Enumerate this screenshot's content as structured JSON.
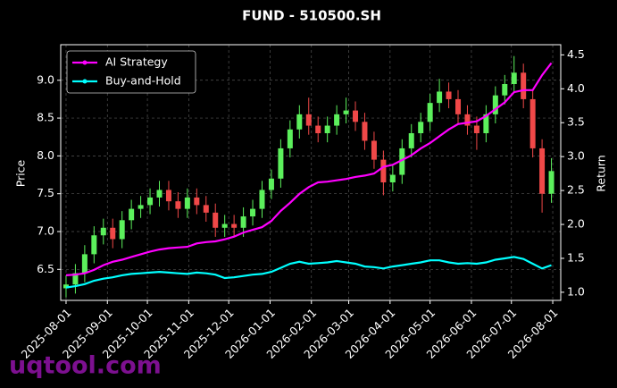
{
  "chart_data": {
    "type": "candlestick",
    "title": "FUND - 510500.SH",
    "y_label": "Price",
    "y2_label": "Return",
    "watermark": "uqtool.com",
    "grid": true,
    "legend": "upper left",
    "up_color": "#5cf05c",
    "down_color": "#f04848",
    "x": [
      "2025-08-01",
      "2025-08-08",
      "2025-08-15",
      "2025-08-22",
      "2025-08-29",
      "2025-09-05",
      "2025-09-12",
      "2025-09-19",
      "2025-09-26",
      "2025-10-03",
      "2025-10-10",
      "2025-10-17",
      "2025-10-24",
      "2025-10-31",
      "2025-11-07",
      "2025-11-14",
      "2025-11-21",
      "2025-11-28",
      "2025-12-05",
      "2025-12-12",
      "2025-12-19",
      "2025-12-26",
      "2026-01-02",
      "2026-01-09",
      "2026-01-16",
      "2026-01-23",
      "2026-01-30",
      "2026-02-06",
      "2026-02-13",
      "2026-02-20",
      "2026-02-27",
      "2026-03-06",
      "2026-03-13",
      "2026-03-20",
      "2026-03-27",
      "2026-04-03",
      "2026-04-10",
      "2026-04-17",
      "2026-04-24",
      "2026-05-01",
      "2026-05-08",
      "2026-05-15",
      "2026-05-22",
      "2026-05-29",
      "2026-06-05",
      "2026-06-12",
      "2026-06-19",
      "2026-06-26",
      "2026-07-03",
      "2026-07-10",
      "2026-07-17",
      "2026-07-24",
      "2026-07-31"
    ],
    "open": [
      6.25,
      6.3,
      6.45,
      6.7,
      6.95,
      7.05,
      6.9,
      7.15,
      7.3,
      7.35,
      7.45,
      7.55,
      7.4,
      7.3,
      7.45,
      7.35,
      7.25,
      7.05,
      7.1,
      7.05,
      7.2,
      7.3,
      7.55,
      7.7,
      8.1,
      8.35,
      8.55,
      8.4,
      8.3,
      8.4,
      8.55,
      8.6,
      8.45,
      8.2,
      7.95,
      7.65,
      7.75,
      8.1,
      8.3,
      8.45,
      8.7,
      8.85,
      8.75,
      8.55,
      8.4,
      8.3,
      8.55,
      8.8,
      8.95,
      9.1,
      8.75,
      8.1,
      7.5
    ],
    "high": [
      6.42,
      6.57,
      6.82,
      7.07,
      7.17,
      7.17,
      7.27,
      7.42,
      7.47,
      7.57,
      7.67,
      7.67,
      7.52,
      7.57,
      7.57,
      7.47,
      7.37,
      7.22,
      7.22,
      7.32,
      7.42,
      7.67,
      7.82,
      8.22,
      8.47,
      8.67,
      8.77,
      8.52,
      8.52,
      8.67,
      8.77,
      8.72,
      8.57,
      8.32,
      8.07,
      7.87,
      8.22,
      8.42,
      8.57,
      8.82,
      9.02,
      8.97,
      8.87,
      8.67,
      8.52,
      8.67,
      8.92,
      9.07,
      9.32,
      9.22,
      8.87,
      8.22,
      7.97
    ],
    "low": [
      6.13,
      6.18,
      6.33,
      6.58,
      6.83,
      6.78,
      6.78,
      7.03,
      7.18,
      7.23,
      7.33,
      7.28,
      7.18,
      7.18,
      7.23,
      7.13,
      6.93,
      6.93,
      6.93,
      6.93,
      7.08,
      7.18,
      7.43,
      7.58,
      7.98,
      8.23,
      8.28,
      8.18,
      8.18,
      8.28,
      8.43,
      8.33,
      8.08,
      7.83,
      7.48,
      7.53,
      7.63,
      7.98,
      8.18,
      8.33,
      8.58,
      8.63,
      8.43,
      8.28,
      8.08,
      8.18,
      8.43,
      8.68,
      8.83,
      8.63,
      7.98,
      7.25,
      7.38
    ],
    "close": [
      6.3,
      6.45,
      6.7,
      6.95,
      7.05,
      6.9,
      7.15,
      7.3,
      7.35,
      7.45,
      7.55,
      7.4,
      7.3,
      7.45,
      7.35,
      7.25,
      7.05,
      7.1,
      7.05,
      7.2,
      7.3,
      7.55,
      7.7,
      8.1,
      8.35,
      8.55,
      8.4,
      8.3,
      8.4,
      8.55,
      8.6,
      8.45,
      8.2,
      7.95,
      7.65,
      7.75,
      8.1,
      8.3,
      8.45,
      8.7,
      8.85,
      8.75,
      8.55,
      8.4,
      8.3,
      8.55,
      8.8,
      8.95,
      9.1,
      8.75,
      8.1,
      7.5,
      7.8
    ],
    "series": [
      {
        "name": "AI Strategy",
        "color": "#ff00ff",
        "axis": "y2",
        "values": [
          1.25,
          1.26,
          1.28,
          1.33,
          1.4,
          1.45,
          1.48,
          1.52,
          1.56,
          1.6,
          1.63,
          1.65,
          1.66,
          1.67,
          1.72,
          1.74,
          1.75,
          1.78,
          1.82,
          1.88,
          1.92,
          1.96,
          2.05,
          2.2,
          2.32,
          2.45,
          2.55,
          2.62,
          2.63,
          2.65,
          2.67,
          2.7,
          2.72,
          2.75,
          2.85,
          2.88,
          2.95,
          3.02,
          3.12,
          3.2,
          3.3,
          3.4,
          3.48,
          3.5,
          3.52,
          3.6,
          3.7,
          3.8,
          3.95,
          3.98,
          3.98,
          4.2,
          4.38
        ]
      },
      {
        "name": "Buy-and-Hold",
        "color": "#00ffff",
        "axis": "y2",
        "values": [
          1.07,
          1.09,
          1.12,
          1.17,
          1.2,
          1.22,
          1.25,
          1.27,
          1.28,
          1.29,
          1.3,
          1.29,
          1.28,
          1.27,
          1.29,
          1.28,
          1.26,
          1.21,
          1.22,
          1.24,
          1.26,
          1.27,
          1.3,
          1.36,
          1.42,
          1.45,
          1.42,
          1.43,
          1.44,
          1.46,
          1.44,
          1.42,
          1.38,
          1.37,
          1.35,
          1.38,
          1.4,
          1.42,
          1.44,
          1.47,
          1.47,
          1.44,
          1.42,
          1.43,
          1.42,
          1.44,
          1.48,
          1.5,
          1.52,
          1.49,
          1.42,
          1.35,
          1.4
        ]
      }
    ],
    "xlim": [
      "2025-07-28",
      "2026-08-07"
    ],
    "xticks": [
      "2025-08-01",
      "2025-09-01",
      "2025-10-01",
      "2025-11-01",
      "2025-12-01",
      "2026-01-01",
      "2026-02-01",
      "2026-03-01",
      "2026-04-01",
      "2026-05-01",
      "2026-06-01",
      "2026-07-01",
      "2026-08-01"
    ],
    "ylim": [
      6.09,
      9.47
    ],
    "yticks": [
      6.5,
      {
        "value": 7,
        "label": "7.0"
      },
      7.5,
      {
        "value": 8,
        "label": "8.0"
      },
      8.5,
      {
        "value": 9,
        "label": "9.0"
      }
    ],
    "y2lim": [
      0.88,
      4.65
    ],
    "y2ticks": [
      {
        "value": 1,
        "label": "1.0"
      },
      1.5,
      {
        "value": 2,
        "label": "2.0"
      },
      2.5,
      {
        "value": 3,
        "label": "3.0"
      },
      3.5,
      {
        "value": 4,
        "label": "4.0"
      },
      4.5
    ]
  }
}
